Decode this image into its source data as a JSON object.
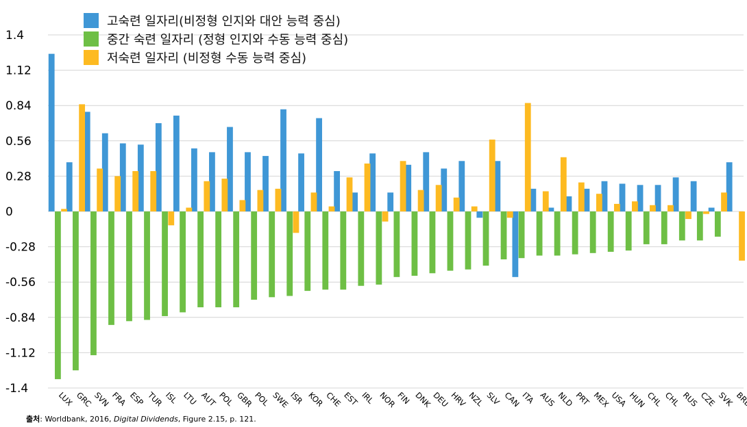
{
  "chart_data": {
    "type": "bar",
    "title": "",
    "xlabel": "",
    "ylabel": "",
    "ylim": [
      -1.4,
      1.4
    ],
    "yticks": [
      1.4,
      1.12,
      0.84,
      0.56,
      0.28,
      0,
      -0.28,
      -0.56,
      -0.84,
      -1.12,
      -1.4
    ],
    "ytick_labels": [
      "1.4",
      "1.12",
      "0.84",
      "0.56",
      "0.28",
      "0",
      "-0.28",
      "-0.56",
      "-0.84",
      "-1.12",
      "-1.4"
    ],
    "grid": true,
    "legend_position": "top-left",
    "categories": [
      "LUX",
      "GRC",
      "SVN",
      "FRA",
      "ESP",
      "TUR",
      "ISL",
      "LTU",
      "AUT",
      "POL",
      "GBR",
      "POL",
      "SWE",
      "ISR",
      "KOR",
      "CHE",
      "EST",
      "IRL",
      "NOR",
      "FIN",
      "DNK",
      "DEU",
      "HRV",
      "NZL",
      "SLV",
      "CAN",
      "ITA",
      "AUS",
      "NLD",
      "PRT",
      "MEX",
      "USA",
      "HUN",
      "CHL",
      "CHL",
      "RUS",
      "CZE",
      "SVK",
      "BRB"
    ],
    "series": [
      {
        "name": "고숙련 일자리(비정형 인지와 대안 능력 중심)",
        "color": "#3F97D6",
        "values": [
          1.25,
          0.39,
          0.79,
          0.62,
          0.54,
          0.53,
          0.7,
          0.76,
          0.5,
          0.47,
          0.67,
          0.47,
          0.44,
          0.81,
          0.46,
          0.74,
          0.32,
          0.15,
          0.46,
          0.15,
          0.37,
          0.47,
          0.34,
          0.4,
          -0.05,
          0.4,
          -0.52,
          0.18,
          0.03,
          0.12,
          0.18,
          0.24,
          0.22,
          0.21,
          0.21,
          0.27,
          0.24,
          0.03,
          0.39
        ]
      },
      {
        "name": "중간 숙련 일자리 (정형 인지와 수동 능력 중심)",
        "color": "#6EBF45",
        "values": [
          -1.33,
          -1.26,
          -1.14,
          -0.9,
          -0.87,
          -0.86,
          -0.83,
          -0.8,
          -0.76,
          -0.76,
          -0.76,
          -0.7,
          -0.68,
          -0.67,
          -0.63,
          -0.62,
          -0.62,
          -0.59,
          -0.58,
          -0.52,
          -0.51,
          -0.49,
          -0.47,
          -0.46,
          -0.43,
          -0.38,
          -0.37,
          -0.35,
          -0.35,
          -0.34,
          -0.33,
          -0.32,
          -0.31,
          -0.26,
          -0.26,
          -0.23,
          -0.23,
          -0.2,
          0
        ]
      },
      {
        "name": "저숙련 일자리 (비정형 수동 능력 중심)",
        "color": "#FDBA21",
        "values": [
          0.02,
          0.85,
          0.34,
          0.28,
          0.32,
          0.32,
          -0.11,
          0.03,
          0.24,
          0.26,
          0.09,
          0.17,
          0.18,
          -0.17,
          0.15,
          0.04,
          0.27,
          0.38,
          -0.08,
          0.4,
          0.17,
          0.21,
          0.11,
          0.04,
          0.57,
          -0.05,
          0.86,
          0.16,
          0.43,
          0.23,
          0.14,
          0.06,
          0.08,
          0.05,
          0.05,
          -0.06,
          -0.02,
          0.15,
          -0.39
        ]
      }
    ]
  },
  "source": {
    "label": "출처",
    "pre": ": Worldbank, 2016, ",
    "title": "Digital Dividends",
    "post": ", Figure 2.15, p. 121."
  }
}
